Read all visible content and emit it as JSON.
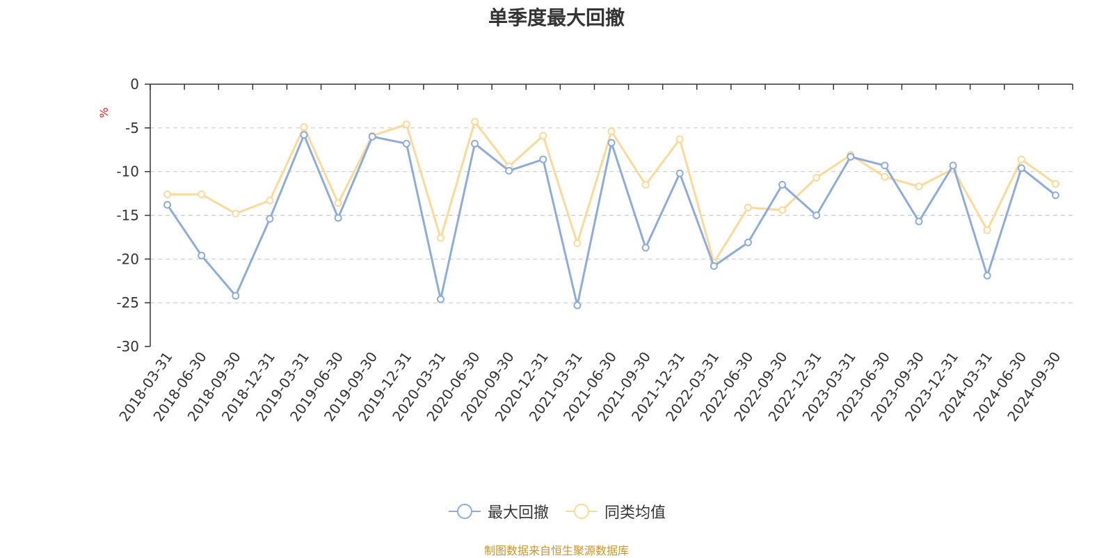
{
  "chart_data": {
    "type": "line",
    "title": "单季度最大回撤",
    "ylabel": "%",
    "xlabel": "",
    "ylim": [
      -30,
      0
    ],
    "yticks": [
      "0",
      "-5",
      "-10",
      "-15",
      "-20",
      "-25",
      "-30"
    ],
    "grid": true,
    "legend_position": "bottom-center",
    "categories": [
      "2018-03-31",
      "2018-06-30",
      "2018-09-30",
      "2018-12-31",
      "2019-03-31",
      "2019-06-30",
      "2019-09-30",
      "2019-12-31",
      "2020-03-31",
      "2020-06-30",
      "2020-09-30",
      "2020-12-31",
      "2021-03-31",
      "2021-06-30",
      "2021-09-30",
      "2021-12-31",
      "2022-03-31",
      "2022-06-30",
      "2022-09-30",
      "2022-12-31",
      "2023-03-31",
      "2023-06-30",
      "2023-09-30",
      "2023-12-31",
      "2024-03-31",
      "2024-06-30",
      "2024-09-30"
    ],
    "series": [
      {
        "name": "最大回撤",
        "color": "#8dacd8",
        "values": [
          -13.8,
          -19.6,
          -24.2,
          -15.4,
          -5.8,
          -15.3,
          -6.0,
          -6.8,
          -24.6,
          -6.8,
          -9.9,
          -8.6,
          -25.3,
          -6.7,
          -18.7,
          -10.2,
          -20.8,
          -18.1,
          -11.5,
          -15.0,
          -8.3,
          -9.3,
          -15.7,
          -9.3,
          -21.9,
          -9.6,
          -12.7
        ]
      },
      {
        "name": "同类均值",
        "color": "#fad99b",
        "values": [
          -12.6,
          -12.6,
          -14.8,
          -13.3,
          -4.9,
          -13.6,
          -5.9,
          -4.6,
          -17.6,
          -4.3,
          -9.4,
          -5.9,
          -18.2,
          -5.4,
          -11.5,
          -6.3,
          -20.4,
          -14.1,
          -14.4,
          -10.7,
          -8.1,
          -10.6,
          -11.7,
          -9.7,
          -16.7,
          -8.6,
          -11.4
        ]
      }
    ]
  },
  "footer": {
    "source": "制图数据来自恒生聚源数据库"
  }
}
